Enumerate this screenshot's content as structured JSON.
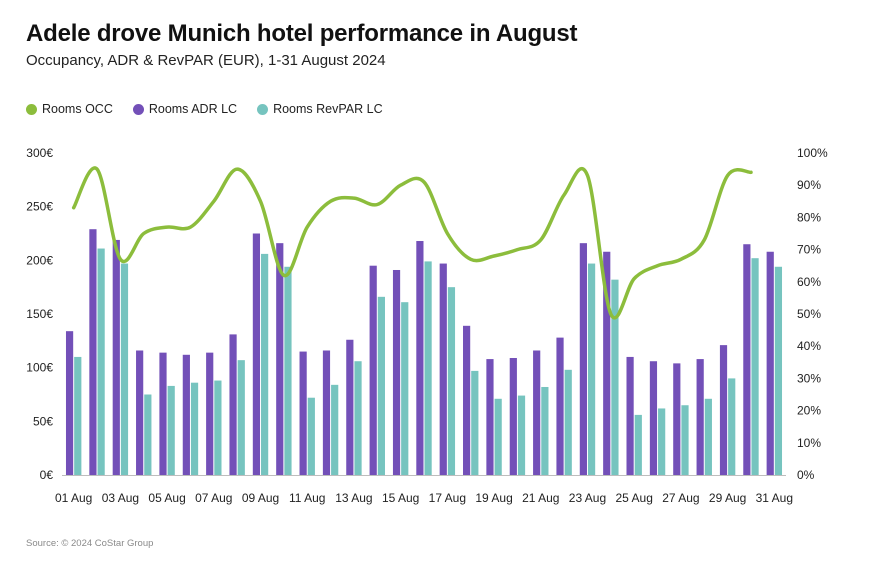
{
  "header": {
    "title": "Adele drove Munich hotel performance in August",
    "subtitle": "Occupancy, ADR & RevPAR (EUR), 1-31 August 2024"
  },
  "legend": [
    {
      "label": "Rooms OCC",
      "color": "#8cbd3c"
    },
    {
      "label": "Rooms ADR LC",
      "color": "#7350b8"
    },
    {
      "label": "Rooms RevPAR LC",
      "color": "#76c4bf"
    }
  ],
  "source": "Source: © 2024 CoStar Group",
  "chart_data": {
    "type": "bar",
    "categories": [
      "01 Aug",
      "02 Aug",
      "03 Aug",
      "04 Aug",
      "05 Aug",
      "06 Aug",
      "07 Aug",
      "08 Aug",
      "09 Aug",
      "10 Aug",
      "11 Aug",
      "12 Aug",
      "13 Aug",
      "14 Aug",
      "15 Aug",
      "16 Aug",
      "17 Aug",
      "18 Aug",
      "19 Aug",
      "20 Aug",
      "21 Aug",
      "22 Aug",
      "23 Aug",
      "24 Aug",
      "25 Aug",
      "26 Aug",
      "27 Aug",
      "28 Aug",
      "29 Aug",
      "30 Aug",
      "31 Aug"
    ],
    "x_tick_labels": [
      "01 Aug",
      "03 Aug",
      "05 Aug",
      "07 Aug",
      "09 Aug",
      "11 Aug",
      "13 Aug",
      "15 Aug",
      "17 Aug",
      "19 Aug",
      "21 Aug",
      "23 Aug",
      "25 Aug",
      "27 Aug",
      "29 Aug",
      "31 Aug"
    ],
    "series": [
      {
        "name": "Rooms ADR LC",
        "type": "bar",
        "axis": "left",
        "color": "#7350b8",
        "values": [
          134,
          229,
          219,
          116,
          114,
          112,
          114,
          131,
          225,
          216,
          115,
          116,
          126,
          195,
          191,
          218,
          197,
          139,
          108,
          109,
          116,
          128,
          216,
          208,
          110,
          106,
          104,
          108,
          121,
          215,
          208
        ]
      },
      {
        "name": "Rooms RevPAR LC",
        "type": "bar",
        "axis": "left",
        "color": "#76c4bf",
        "values": [
          110,
          211,
          197,
          75,
          83,
          86,
          88,
          107,
          206,
          194,
          72,
          84,
          106,
          166,
          161,
          199,
          175,
          97,
          71,
          74,
          82,
          98,
          197,
          182,
          56,
          62,
          65,
          71,
          90,
          202,
          194
        ]
      },
      {
        "name": "Rooms OCC",
        "type": "line",
        "axis": "right",
        "color": "#8cbd3c",
        "values": [
          83,
          95,
          67,
          75,
          77,
          77,
          85,
          95,
          85,
          62,
          77,
          85,
          86,
          84,
          90,
          91,
          75,
          67,
          68,
          70,
          73,
          87,
          93,
          50,
          61,
          65,
          67,
          73,
          93,
          94,
          null
        ]
      }
    ],
    "y_left": {
      "ticks": [
        "0€",
        "50€",
        "100€",
        "150€",
        "200€",
        "250€",
        "300€"
      ],
      "range": [
        0,
        300
      ]
    },
    "y_right": {
      "ticks": [
        "0%",
        "10%",
        "20%",
        "30%",
        "40%",
        "50%",
        "60%",
        "70%",
        "80%",
        "90%",
        "100%"
      ],
      "range": [
        0,
        100
      ]
    },
    "grid": false,
    "legend_position": "top-left"
  }
}
